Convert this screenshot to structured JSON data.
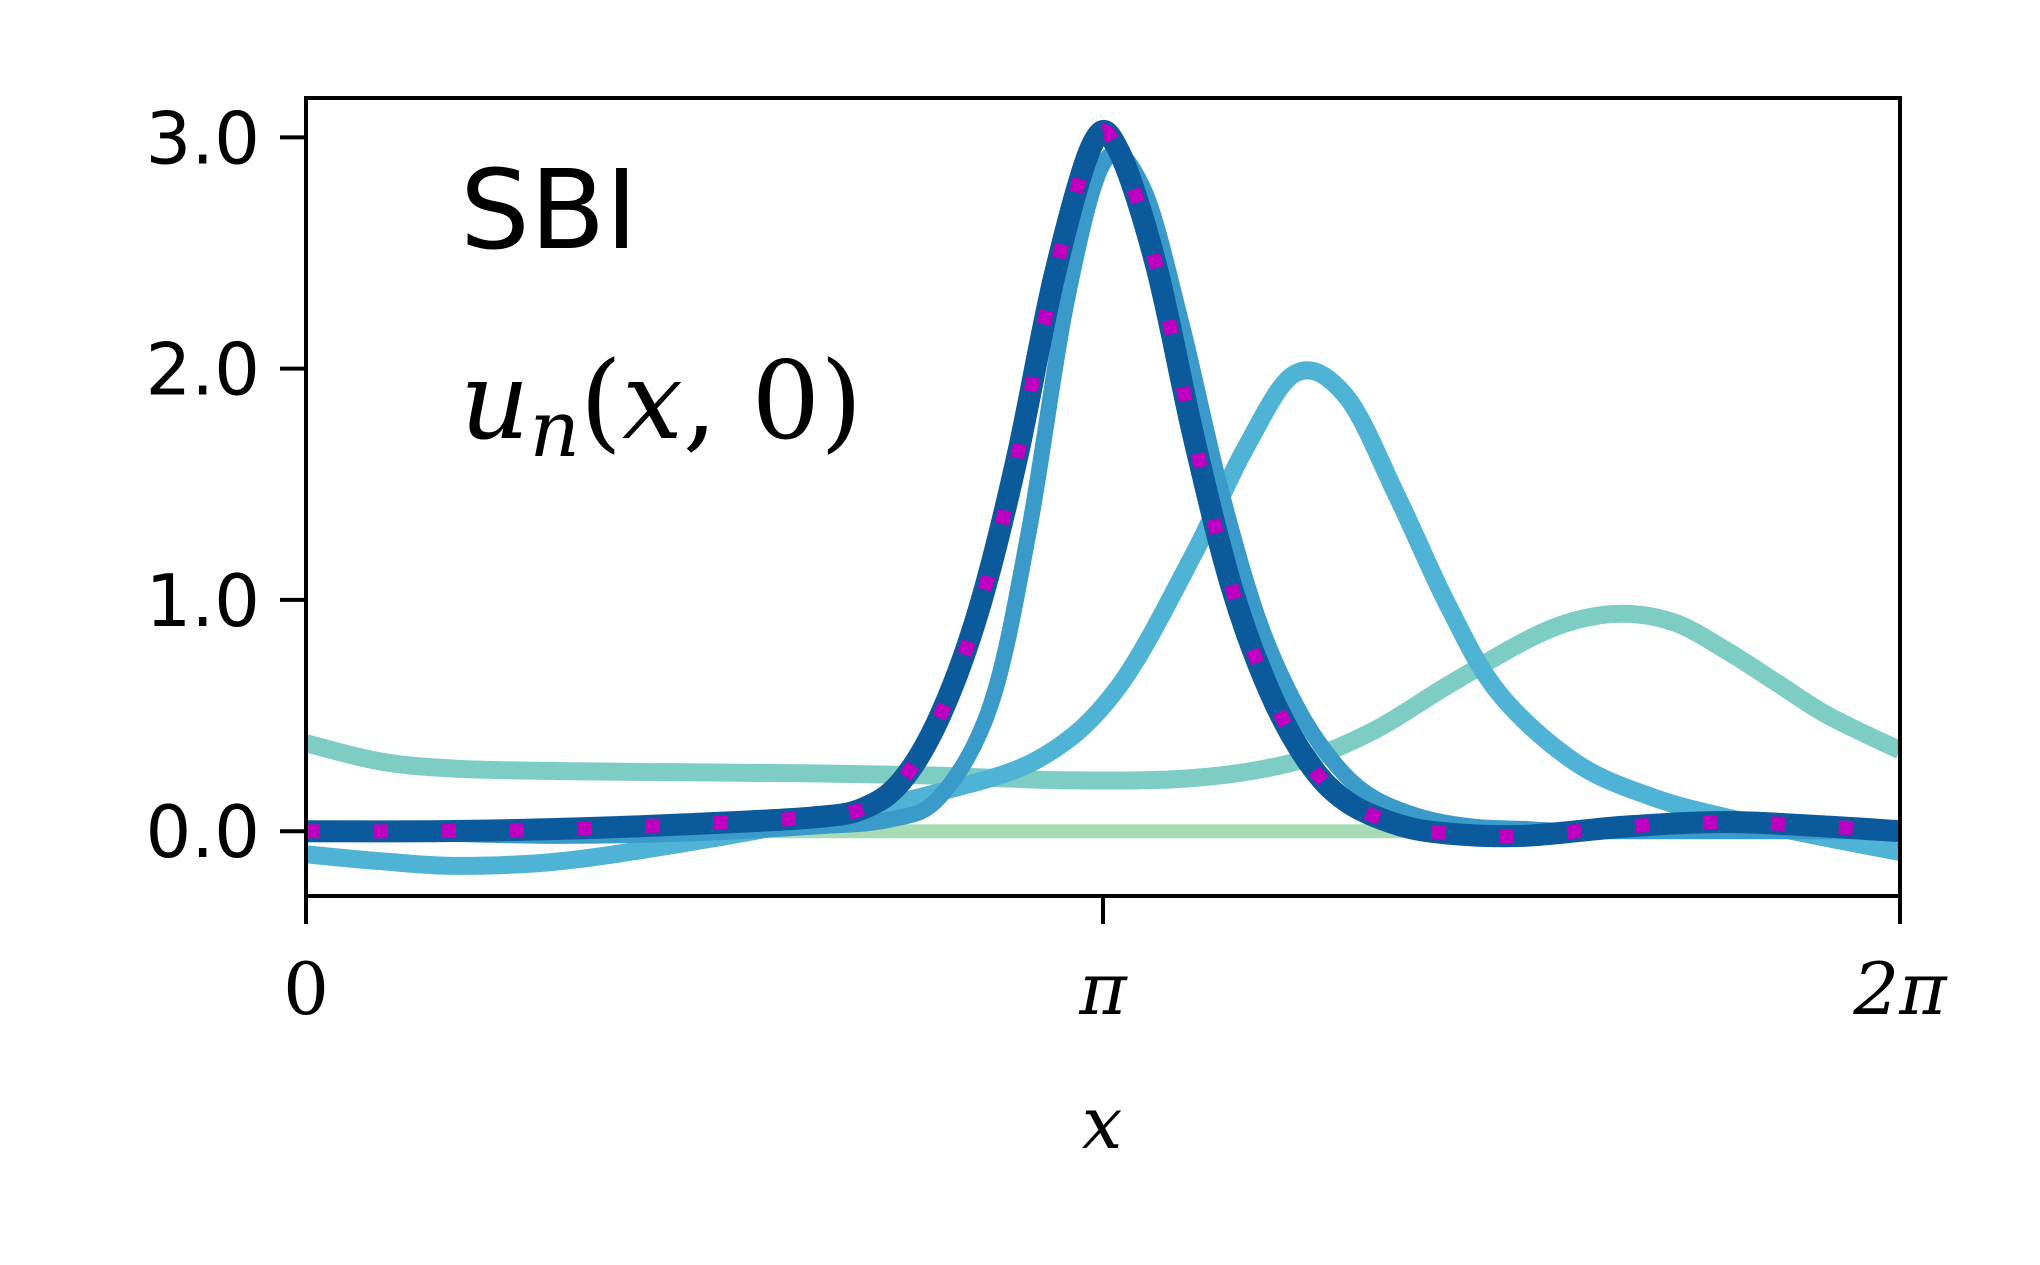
{
  "chart_data": {
    "type": "line",
    "annotations": {
      "panel_label": "SBI",
      "quantity": "u_n(x, 0)"
    },
    "xlabel": "x",
    "ylabel": "",
    "xlim": [
      0,
      6.2832
    ],
    "ylim": [
      -0.28,
      3.17
    ],
    "xticks": [
      {
        "value": 0,
        "label": "0"
      },
      {
        "value": 3.1416,
        "label": "π"
      },
      {
        "value": 6.2832,
        "label": "2π"
      }
    ],
    "yticks": [
      {
        "value": 0.0,
        "label": "0.0"
      },
      {
        "value": 1.0,
        "label": "1.0"
      },
      {
        "value": 2.0,
        "label": "2.0"
      },
      {
        "value": 3.0,
        "label": "3.0"
      }
    ],
    "grid": false,
    "legend": false,
    "series": [
      {
        "color": "#a8dcb4",
        "x": [
          0.0,
          1.0,
          2.0,
          3.0,
          4.0,
          5.0,
          6.2832
        ],
        "y": [
          0.0,
          0.0,
          0.0,
          0.0,
          0.0,
          0.0,
          0.0
        ]
      },
      {
        "color": "#7ecdc4",
        "x": [
          0.0,
          0.3,
          0.6,
          1.0,
          1.5,
          2.0,
          2.5,
          3.0,
          3.5,
          3.9,
          4.2,
          4.5,
          4.8,
          5.0,
          5.2,
          5.4,
          5.6,
          5.8,
          6.0,
          6.2832
        ],
        "y": [
          0.38,
          0.3,
          0.27,
          0.26,
          0.255,
          0.25,
          0.24,
          0.22,
          0.23,
          0.3,
          0.43,
          0.63,
          0.82,
          0.91,
          0.94,
          0.9,
          0.78,
          0.64,
          0.5,
          0.35
        ]
      },
      {
        "color": "#4fb3d6",
        "x": [
          0.0,
          0.3,
          0.6,
          1.0,
          1.5,
          2.0,
          2.5,
          2.9,
          3.2,
          3.5,
          3.7,
          3.9,
          4.1,
          4.3,
          4.5,
          4.7,
          5.0,
          5.3,
          5.6,
          6.0,
          6.2832
        ],
        "y": [
          -0.1,
          -0.13,
          -0.15,
          -0.13,
          -0.05,
          0.05,
          0.17,
          0.32,
          0.62,
          1.2,
          1.65,
          1.98,
          1.88,
          1.45,
          0.98,
          0.6,
          0.3,
          0.15,
          0.06,
          -0.03,
          -0.09
        ]
      },
      {
        "color": "#3a9bcb",
        "x": [
          0.0,
          0.5,
          1.0,
          1.5,
          2.0,
          2.3,
          2.5,
          2.7,
          2.85,
          3.0,
          3.15,
          3.3,
          3.45,
          3.6,
          3.75,
          3.9,
          4.05,
          4.2,
          4.4,
          4.6,
          4.8,
          5.0,
          5.5,
          6.0,
          6.2832
        ],
        "y": [
          0.0,
          -0.01,
          -0.02,
          -0.01,
          0.02,
          0.05,
          0.15,
          0.55,
          1.3,
          2.3,
          2.9,
          2.78,
          2.2,
          1.5,
          0.93,
          0.55,
          0.3,
          0.15,
          0.06,
          0.02,
          0.01,
          0.0,
          0.0,
          0.0,
          0.0
        ]
      },
      {
        "color": "#0a5a9c",
        "x": [
          0.0,
          0.5,
          1.0,
          1.5,
          2.0,
          2.2,
          2.35,
          2.5,
          2.65,
          2.8,
          2.95,
          3.1,
          3.2,
          3.35,
          3.5,
          3.65,
          3.8,
          3.95,
          4.1,
          4.3,
          4.5,
          4.8,
          5.2,
          5.6,
          6.0,
          6.2832
        ],
        "y": [
          0.0,
          0.0,
          0.01,
          0.03,
          0.06,
          0.1,
          0.22,
          0.5,
          0.95,
          1.6,
          2.4,
          2.97,
          2.95,
          2.45,
          1.7,
          1.05,
          0.6,
          0.3,
          0.13,
          0.03,
          -0.01,
          -0.02,
          0.02,
          0.04,
          0.02,
          0.0
        ]
      },
      {
        "color": "#c000c0",
        "dashed": true,
        "x": [
          0.0,
          0.5,
          1.0,
          1.5,
          2.0,
          2.2,
          2.35,
          2.5,
          2.65,
          2.8,
          2.95,
          3.1,
          3.2,
          3.35,
          3.5,
          3.65,
          3.8,
          3.95,
          4.1,
          4.3,
          4.5,
          4.8,
          5.2,
          5.6,
          6.0,
          6.2832
        ],
        "y": [
          0.0,
          0.0,
          0.01,
          0.03,
          0.06,
          0.1,
          0.22,
          0.5,
          0.95,
          1.6,
          2.4,
          2.97,
          2.95,
          2.45,
          1.7,
          1.05,
          0.6,
          0.3,
          0.13,
          0.03,
          -0.01,
          -0.02,
          0.02,
          0.04,
          0.02,
          0.0
        ]
      }
    ]
  }
}
